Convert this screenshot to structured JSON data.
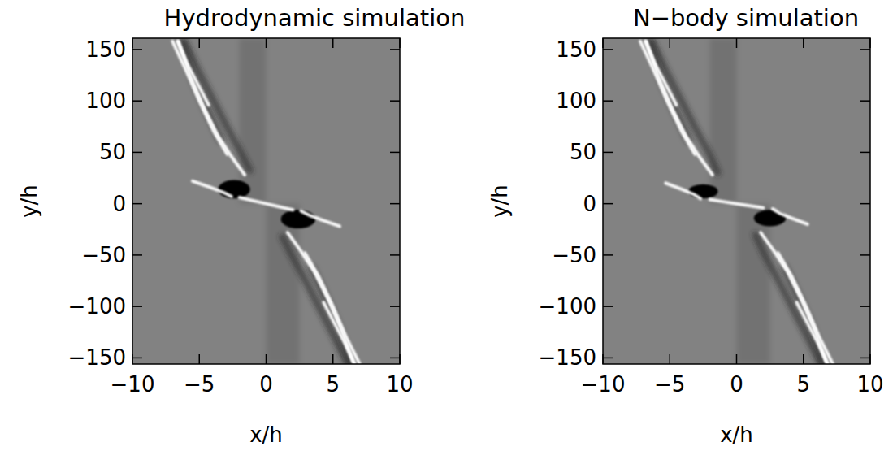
{
  "chart_data": [
    {
      "type": "image",
      "title": "Hydrodynamic simulation",
      "x_label": "x/h",
      "y_label": "y/h",
      "xlim": [
        -10,
        10
      ],
      "ylim": [
        -156,
        161
      ],
      "xticks": [
        {
          "value": -10,
          "label": "−10"
        },
        {
          "value": -5,
          "label": "−5"
        },
        0,
        5,
        10
      ],
      "yticks": [
        {
          "value": -150,
          "label": "−150"
        },
        {
          "value": -100,
          "label": "−100"
        },
        {
          "value": -50,
          "label": "−50"
        },
        0,
        50,
        100,
        150
      ],
      "bands": [
        {
          "x": [
            -2,
            0
          ],
          "y": [
            0,
            161
          ]
        },
        {
          "x": [
            0,
            2.5
          ],
          "y": [
            -156,
            0
          ]
        }
      ],
      "blobs": {
        "x": [
          -2.4,
          2.4
        ],
        "y": [
          14,
          -15
        ],
        "rx": [
          1.2,
          1.3
        ],
        "ry": [
          9,
          9
        ]
      },
      "troughs": [
        {
          "x": [
            -1.2,
            -1.9,
            -2.9,
            -4,
            -5.1,
            -6.1
          ],
          "y": [
            32,
            50,
            74,
            102,
            130,
            158
          ]
        },
        {
          "x": [
            -3.4,
            -4.4,
            -5.4,
            -6.3
          ],
          "y": [
            62,
            90,
            120,
            158
          ]
        },
        {
          "x": [
            1.2,
            1.9,
            2.9,
            4,
            5.1,
            6.1
          ],
          "y": [
            -32,
            -50,
            -74,
            -102,
            -130,
            -156
          ]
        },
        {
          "x": [
            3.4,
            4.4,
            5.4,
            6.3
          ],
          "y": [
            -62,
            -90,
            -120,
            -156
          ]
        }
      ],
      "crests": [
        {
          "x": [
            -2,
            -1,
            0,
            1,
            2
          ],
          "y": [
            6,
            3,
            0,
            -3,
            -6
          ]
        },
        {
          "x": [
            -5.5,
            -4.2,
            -3.2,
            -2.6
          ],
          "y": [
            22,
            16,
            11,
            7
          ]
        },
        {
          "x": [
            -1.6,
            -2.6,
            -3.6,
            -4.6,
            -5.6,
            -6.6
          ],
          "y": [
            28,
            46,
            66,
            92,
            122,
            158
          ]
        },
        {
          "x": [
            -2.9,
            -3.9,
            -5,
            -6,
            -7
          ],
          "y": [
            48,
            70,
            100,
            130,
            158
          ]
        },
        {
          "x": [
            -4.3,
            -5.1,
            -5.9,
            -6.6
          ],
          "y": [
            96,
            116,
            136,
            158
          ]
        },
        {
          "x": [
            5.5,
            4.2,
            3.2,
            2.6
          ],
          "y": [
            -22,
            -16,
            -11,
            -7
          ]
        },
        {
          "x": [
            1.6,
            2.6,
            3.6,
            4.6,
            5.6,
            6.6
          ],
          "y": [
            -28,
            -46,
            -66,
            -92,
            -122,
            -156
          ]
        },
        {
          "x": [
            2.9,
            3.9,
            5,
            6,
            7
          ],
          "y": [
            -48,
            -70,
            -100,
            -130,
            -156
          ]
        },
        {
          "x": [
            4.3,
            5.1,
            5.9,
            6.6
          ],
          "y": [
            -96,
            -116,
            -136,
            -156
          ]
        }
      ]
    },
    {
      "type": "image",
      "title": "N−body simulation",
      "x_label": "x/h",
      "y_label": "y/h",
      "xlim": [
        -10,
        10
      ],
      "ylim": [
        -156,
        161
      ],
      "xticks": [
        {
          "value": -10,
          "label": "−10"
        },
        {
          "value": -5,
          "label": "−5"
        },
        0,
        5,
        10
      ],
      "yticks": [
        {
          "value": -150,
          "label": "−150"
        },
        {
          "value": -100,
          "label": "−100"
        },
        {
          "value": -50,
          "label": "−50"
        },
        0,
        50,
        100,
        150
      ],
      "bands": [
        {
          "x": [
            -2,
            0
          ],
          "y": [
            0,
            161
          ]
        },
        {
          "x": [
            0,
            2.5
          ],
          "y": [
            -156,
            0
          ]
        }
      ],
      "blobs": {
        "x": [
          -2.5,
          2.5
        ],
        "y": [
          12,
          -14
        ],
        "rx": [
          1.1,
          1.2
        ],
        "ry": [
          7,
          8
        ]
      },
      "troughs": [
        {
          "x": [
            -1.4,
            -2.1,
            -3.1,
            -4.2,
            -5.3,
            -6.3
          ],
          "y": [
            30,
            50,
            74,
            102,
            130,
            158
          ]
        },
        {
          "x": [
            -3.6,
            -4.6,
            -5.6,
            -6.5
          ],
          "y": [
            62,
            90,
            120,
            158
          ]
        },
        {
          "x": [
            1.4,
            2.1,
            3.1,
            4.2,
            5.3,
            6.3
          ],
          "y": [
            -30,
            -50,
            -74,
            -102,
            -130,
            -156
          ]
        },
        {
          "x": [
            3.6,
            4.6,
            5.6,
            6.5
          ],
          "y": [
            -62,
            -90,
            -120,
            -156
          ]
        }
      ],
      "crests": [
        {
          "x": [
            -2,
            -1,
            0,
            1,
            2
          ],
          "y": [
            4,
            2,
            0,
            -2,
            -4
          ]
        },
        {
          "x": [
            -5.3,
            -4.1,
            -3.2,
            -2.7
          ],
          "y": [
            20,
            14,
            9,
            5
          ]
        },
        {
          "x": [
            -1.8,
            -2.8,
            -3.8,
            -4.8,
            -5.8,
            -6.8
          ],
          "y": [
            28,
            46,
            66,
            92,
            122,
            158
          ]
        },
        {
          "x": [
            -3.1,
            -4.1,
            -5.2,
            -6.2,
            -7.2
          ],
          "y": [
            48,
            70,
            100,
            130,
            158
          ]
        },
        {
          "x": [
            -4.5,
            -5.3,
            -6.1,
            -6.8
          ],
          "y": [
            96,
            116,
            136,
            158
          ]
        },
        {
          "x": [
            5.3,
            4.1,
            3.2,
            2.7
          ],
          "y": [
            -20,
            -14,
            -9,
            -5
          ]
        },
        {
          "x": [
            1.8,
            2.8,
            3.8,
            4.8,
            5.8,
            6.8
          ],
          "y": [
            -28,
            -46,
            -66,
            -92,
            -122,
            -156
          ]
        },
        {
          "x": [
            3.1,
            4.1,
            5.2,
            6.2,
            7.2
          ],
          "y": [
            -48,
            -70,
            -100,
            -130,
            -156
          ]
        },
        {
          "x": [
            4.5,
            5.3,
            6.1,
            6.8
          ],
          "y": [
            -96,
            -116,
            -136,
            -156
          ]
        }
      ]
    }
  ]
}
